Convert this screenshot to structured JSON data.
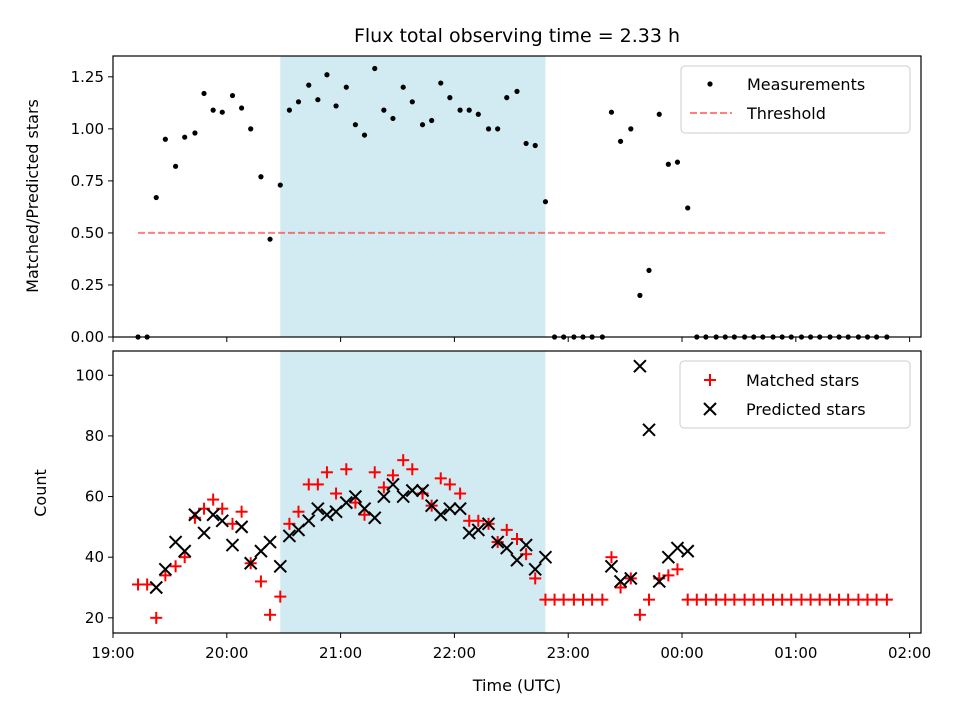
{
  "chart_data": {
    "title": "Flux total observing time = 2.33 h",
    "xlabel": "Time (UTC)",
    "x_axis": {
      "type": "time",
      "range_hours": [
        19.0,
        26.1
      ],
      "ticks": [
        19,
        20,
        21,
        22,
        23,
        24,
        25,
        26
      ],
      "tick_labels": [
        "19:00",
        "20:00",
        "21:00",
        "22:00",
        "23:00",
        "00:00",
        "01:00",
        "02:00"
      ]
    },
    "highlight": {
      "start_hour": 20.47,
      "end_hour": 22.8,
      "color": "#add8e6"
    },
    "panels": [
      {
        "type": "scatter",
        "ylabel": "Matched/Predicted stars",
        "ylim": [
          0,
          1.35
        ],
        "yticks": [
          0,
          0.25,
          0.5,
          0.75,
          1.0,
          1.25
        ],
        "ytick_labels": [
          "0.00",
          "0.25",
          "0.50",
          "0.75",
          "1.00",
          "1.25"
        ],
        "legend": {
          "placement": "top-right",
          "entries": [
            "Measurements",
            "Threshold"
          ]
        },
        "threshold": {
          "name": "Threshold",
          "value": 0.5,
          "x_range": [
            19.22,
            25.8
          ],
          "color": "#ff0000"
        },
        "series": [
          {
            "name": "Measurements",
            "color": "#000000",
            "x": [
              19.22,
              19.3,
              19.38,
              19.46,
              19.55,
              19.63,
              19.72,
              19.8,
              19.88,
              19.96,
              20.05,
              20.13,
              20.21,
              20.3,
              20.38,
              20.47,
              20.55,
              20.63,
              20.72,
              20.8,
              20.88,
              20.96,
              21.05,
              21.13,
              21.21,
              21.3,
              21.38,
              21.46,
              21.55,
              21.63,
              21.72,
              21.8,
              21.88,
              21.96,
              22.05,
              22.13,
              22.21,
              22.3,
              22.38,
              22.46,
              22.55,
              22.63,
              22.71,
              22.8,
              22.88,
              22.96,
              23.05,
              23.13,
              23.21,
              23.3,
              23.38,
              23.46,
              23.55,
              23.63,
              23.71,
              23.8,
              23.88,
              23.96,
              24.05,
              24.13,
              24.21,
              24.3,
              24.38,
              24.46,
              24.55,
              24.63,
              24.71,
              24.8,
              24.88,
              24.96,
              25.05,
              25.13,
              25.21,
              25.3,
              25.38,
              25.46,
              25.55,
              25.63,
              25.71,
              25.8
            ],
            "y": [
              0,
              0,
              0.67,
              0.95,
              0.82,
              0.96,
              0.98,
              1.17,
              1.09,
              1.08,
              1.16,
              1.1,
              1.0,
              0.77,
              0.47,
              0.73,
              1.09,
              1.13,
              1.21,
              1.14,
              1.26,
              1.11,
              1.2,
              1.02,
              0.97,
              1.29,
              1.09,
              1.05,
              1.2,
              1.13,
              1.02,
              1.04,
              1.22,
              1.15,
              1.09,
              1.09,
              1.07,
              1.0,
              1.0,
              1.15,
              1.18,
              0.93,
              0.92,
              0.65,
              0,
              0,
              0,
              0,
              0,
              0,
              1.08,
              0.94,
              1.0,
              0.2,
              0.32,
              1.07,
              0.83,
              0.84,
              0.62,
              0,
              0,
              0,
              0,
              0,
              0,
              0,
              0,
              0,
              0,
              0,
              0,
              0,
              0,
              0,
              0,
              0,
              0,
              0,
              0,
              0
            ]
          }
        ]
      },
      {
        "type": "scatter",
        "ylabel": "Count",
        "ylim": [
          15,
          108
        ],
        "yticks": [
          20,
          40,
          60,
          80,
          100
        ],
        "ytick_labels": [
          "20",
          "40",
          "60",
          "80",
          "100"
        ],
        "legend": {
          "placement": "top-right",
          "entries": [
            "Matched stars",
            "Predicted stars"
          ]
        },
        "series": [
          {
            "name": "Matched stars",
            "marker": "plus",
            "color": "#ff0000",
            "x": [
              19.22,
              19.3,
              19.38,
              19.46,
              19.55,
              19.63,
              19.72,
              19.8,
              19.88,
              19.96,
              20.05,
              20.13,
              20.21,
              20.3,
              20.38,
              20.47,
              20.55,
              20.63,
              20.72,
              20.8,
              20.88,
              20.96,
              21.05,
              21.13,
              21.21,
              21.3,
              21.38,
              21.46,
              21.55,
              21.63,
              21.72,
              21.8,
              21.88,
              21.96,
              22.05,
              22.13,
              22.21,
              22.3,
              22.38,
              22.46,
              22.55,
              22.63,
              22.71,
              22.8,
              22.88,
              22.96,
              23.05,
              23.13,
              23.21,
              23.3,
              23.38,
              23.46,
              23.55,
              23.63,
              23.71,
              23.8,
              23.88,
              23.96,
              24.05,
              24.13,
              24.21,
              24.3,
              24.38,
              24.46,
              24.55,
              24.63,
              24.71,
              24.8,
              24.88,
              24.96,
              25.05,
              25.13,
              25.21,
              25.3,
              25.38,
              25.46,
              25.55,
              25.63,
              25.71,
              25.8
            ],
            "y": [
              31,
              31,
              20,
              34,
              37,
              40,
              53,
              56,
              59,
              56,
              51,
              55,
              38,
              32,
              21,
              27,
              51,
              55,
              64,
              64,
              68,
              61,
              69,
              58,
              54,
              68,
              63,
              67,
              72,
              69,
              61,
              57,
              66,
              64,
              61,
              52,
              52,
              51,
              45,
              49,
              46,
              41,
              33,
              26,
              26,
              26,
              26,
              26,
              26,
              26,
              40,
              30,
              33,
              21,
              26,
              33,
              34,
              36,
              26,
              26,
              26,
              26,
              26,
              26,
              26,
              26,
              26,
              26,
              26,
              26,
              26,
              26,
              26,
              26,
              26,
              26,
              26,
              26,
              26,
              26
            ]
          },
          {
            "name": "Predicted stars",
            "marker": "x",
            "color": "#000000",
            "x": [
              19.38,
              19.46,
              19.55,
              19.63,
              19.72,
              19.8,
              19.88,
              19.96,
              20.05,
              20.13,
              20.21,
              20.3,
              20.38,
              20.47,
              20.55,
              20.63,
              20.72,
              20.8,
              20.88,
              20.96,
              21.05,
              21.13,
              21.21,
              21.3,
              21.38,
              21.46,
              21.55,
              21.63,
              21.72,
              21.8,
              21.88,
              21.96,
              22.05,
              22.13,
              22.21,
              22.3,
              22.38,
              22.46,
              22.55,
              22.63,
              22.71,
              22.8,
              23.38,
              23.46,
              23.55,
              23.63,
              23.71,
              23.8,
              23.88,
              23.96,
              24.05
            ],
            "y": [
              30,
              36,
              45,
              42,
              54,
              48,
              54,
              52,
              44,
              50,
              38,
              42,
              45,
              37,
              47,
              49,
              52,
              56,
              54,
              55,
              58,
              60,
              56,
              53,
              60,
              64,
              60,
              62,
              62,
              57,
              54,
              56,
              56,
              48,
              49,
              51,
              45,
              43,
              39,
              44,
              36,
              40,
              37,
              32,
              33,
              103,
              82,
              32,
              40,
              43,
              42
            ]
          }
        ]
      }
    ]
  }
}
